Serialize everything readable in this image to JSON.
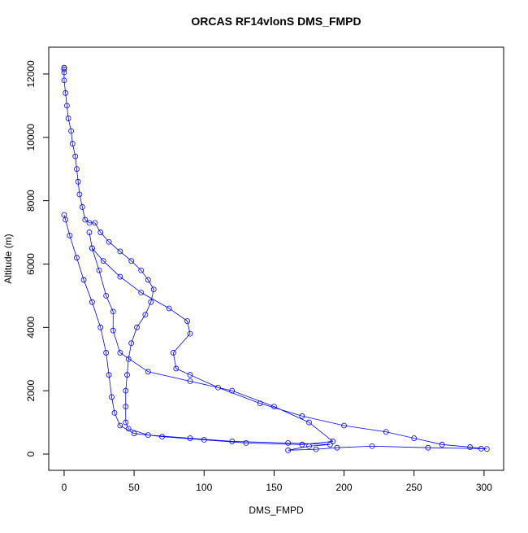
{
  "chart_data": {
    "type": "scatter",
    "title": "ORCAS RF14vlonS DMS_FMPD",
    "x_label": "DMS_FMPD",
    "y_label": "Altitude (m)",
    "color": "#0000ff",
    "x": [
      0,
      0,
      0,
      0,
      1,
      2,
      3,
      5,
      6,
      8,
      9,
      10,
      11,
      13,
      15,
      18,
      22,
      26,
      32,
      40,
      48,
      55,
      60,
      64,
      62,
      58,
      52,
      48,
      46,
      45,
      44,
      44,
      44,
      46,
      60,
      90,
      120,
      160,
      190,
      175,
      160,
      180,
      195,
      220,
      260,
      298,
      302,
      290,
      270,
      250,
      230,
      200,
      170,
      140,
      110,
      90,
      80,
      78,
      90,
      88,
      75,
      55,
      40,
      28,
      20,
      18,
      20,
      25,
      30,
      35,
      35,
      40,
      60,
      90,
      120,
      150,
      175,
      192,
      170,
      130,
      100,
      70,
      50,
      40,
      36,
      34,
      32,
      30,
      26,
      20,
      14,
      9,
      4,
      1,
      0
    ],
    "values": [
      12200,
      12150,
      12050,
      11800,
      11400,
      11000,
      10600,
      10200,
      9800,
      9400,
      9000,
      8600,
      8200,
      7800,
      7400,
      7300,
      7300,
      7000,
      6700,
      6400,
      6100,
      5800,
      5500,
      5200,
      4800,
      4400,
      4000,
      3500,
      3000,
      2500,
      2000,
      1500,
      1000,
      800,
      600,
      500,
      400,
      350,
      300,
      250,
      120,
      150,
      200,
      250,
      200,
      170,
      160,
      220,
      300,
      500,
      700,
      900,
      1200,
      1600,
      2100,
      2500,
      2700,
      3200,
      3800,
      4200,
      4600,
      5100,
      5600,
      6100,
      6500,
      7000,
      6500,
      5800,
      5000,
      4500,
      3900,
      3200,
      2600,
      2300,
      2000,
      1500,
      1000,
      400,
      300,
      350,
      450,
      550,
      650,
      900,
      1300,
      1800,
      2500,
      3200,
      4000,
      4800,
      5500,
      6200,
      6900,
      7400,
      7550
    ],
    "xlim": [
      -11,
      314
    ],
    "ylim": [
      -514,
      12847
    ],
    "xticks": [
      0,
      50,
      100,
      150,
      200,
      250,
      300
    ],
    "yticks": [
      0,
      2000,
      4000,
      6000,
      8000,
      10000,
      12000
    ]
  }
}
